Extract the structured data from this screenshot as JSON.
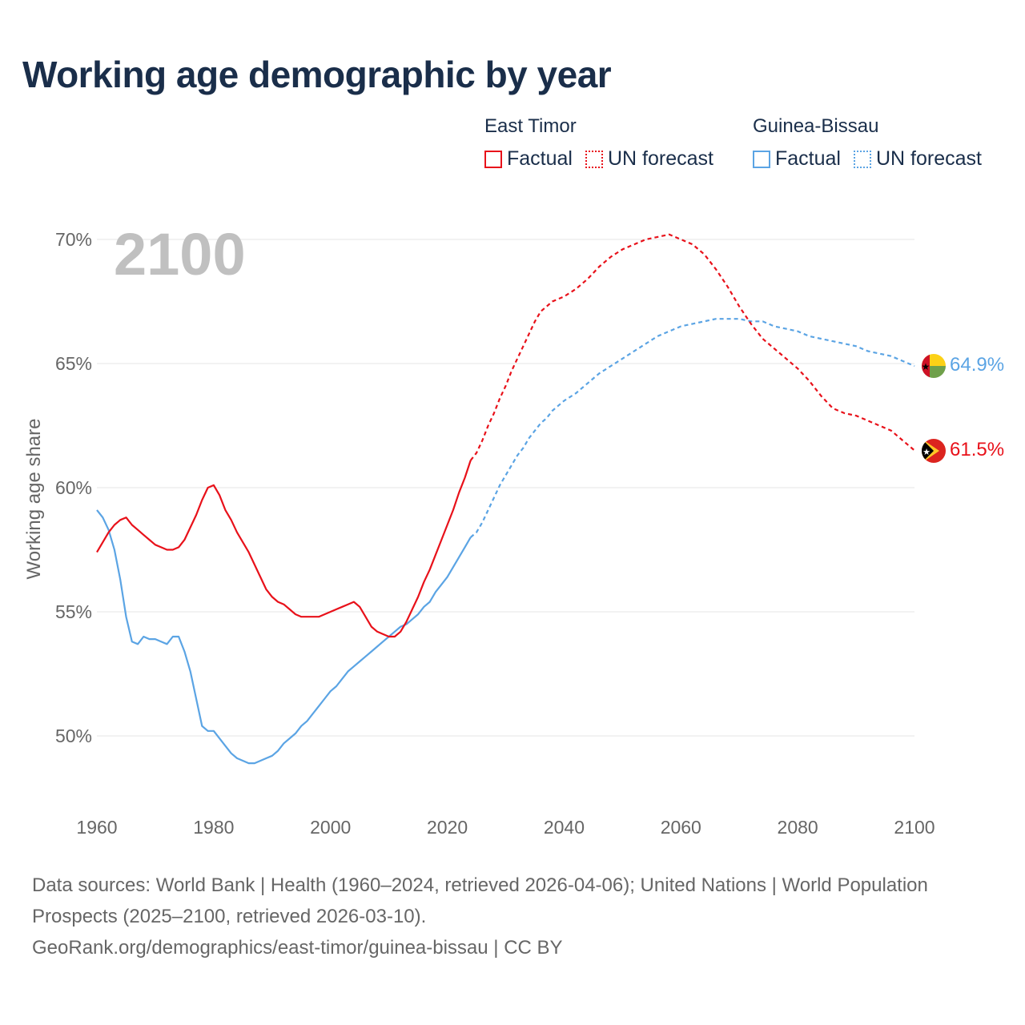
{
  "title": "Working age demographic by year",
  "legend": {
    "groups": [
      {
        "name": "East Timor",
        "color": "#e8111a",
        "factual_label": "Factual",
        "forecast_label": "UN forecast"
      },
      {
        "name": "Guinea-Bissau",
        "color": "#5ba4e4",
        "factual_label": "Factual",
        "forecast_label": "UN forecast"
      }
    ]
  },
  "year_watermark": "2100",
  "end_labels": {
    "east_timor": "61.5%",
    "guinea_bissau": "64.9%"
  },
  "sources": {
    "line1": "Data sources: World Bank | Health (1960–2024, retrieved 2026-04-06); United Nations | World Population Prospects (2025–2100, retrieved 2026-03-10).",
    "line2": "GeoRank.org/demographics/east-timor/guinea-bissau | CC BY"
  },
  "chart_data": {
    "type": "line",
    "title": "Working age demographic by year",
    "xlabel": "",
    "ylabel": "Working age share",
    "xlim": [
      1960,
      2100
    ],
    "ylim": [
      47.5,
      71.5
    ],
    "x_ticks": [
      1960,
      1980,
      2000,
      2020,
      2040,
      2060,
      2080,
      2100
    ],
    "x_tick_labels": [
      "1960",
      "1980",
      "2000",
      "2020",
      "2040",
      "2060",
      "2080",
      "2100"
    ],
    "y_ticks": [
      50,
      55,
      60,
      65,
      70
    ],
    "y_tick_labels": [
      "50%",
      "55%",
      "60%",
      "65%",
      "70%"
    ],
    "grid": true,
    "series": [
      {
        "name": "East Timor",
        "color": "#e8111a",
        "factual": [
          [
            1960,
            57.4
          ],
          [
            1961,
            57.8
          ],
          [
            1962,
            58.2
          ],
          [
            1963,
            58.5
          ],
          [
            1964,
            58.7
          ],
          [
            1965,
            58.8
          ],
          [
            1966,
            58.5
          ],
          [
            1967,
            58.3
          ],
          [
            1968,
            58.1
          ],
          [
            1969,
            57.9
          ],
          [
            1970,
            57.7
          ],
          [
            1971,
            57.6
          ],
          [
            1972,
            57.5
          ],
          [
            1973,
            57.5
          ],
          [
            1974,
            57.6
          ],
          [
            1975,
            57.9
          ],
          [
            1976,
            58.4
          ],
          [
            1977,
            58.9
          ],
          [
            1978,
            59.5
          ],
          [
            1979,
            60.0
          ],
          [
            1980,
            60.1
          ],
          [
            1981,
            59.7
          ],
          [
            1982,
            59.1
          ],
          [
            1983,
            58.7
          ],
          [
            1984,
            58.2
          ],
          [
            1985,
            57.8
          ],
          [
            1986,
            57.4
          ],
          [
            1987,
            56.9
          ],
          [
            1988,
            56.4
          ],
          [
            1989,
            55.9
          ],
          [
            1990,
            55.6
          ],
          [
            1991,
            55.4
          ],
          [
            1992,
            55.3
          ],
          [
            1993,
            55.1
          ],
          [
            1994,
            54.9
          ],
          [
            1995,
            54.8
          ],
          [
            1996,
            54.8
          ],
          [
            1997,
            54.8
          ],
          [
            1998,
            54.8
          ],
          [
            1999,
            54.9
          ],
          [
            2000,
            55.0
          ],
          [
            2001,
            55.1
          ],
          [
            2002,
            55.2
          ],
          [
            2003,
            55.3
          ],
          [
            2004,
            55.4
          ],
          [
            2005,
            55.2
          ],
          [
            2006,
            54.8
          ],
          [
            2007,
            54.4
          ],
          [
            2008,
            54.2
          ],
          [
            2009,
            54.1
          ],
          [
            2010,
            54.0
          ],
          [
            2011,
            54.0
          ],
          [
            2012,
            54.2
          ],
          [
            2013,
            54.6
          ],
          [
            2014,
            55.1
          ],
          [
            2015,
            55.6
          ],
          [
            2016,
            56.2
          ],
          [
            2017,
            56.7
          ],
          [
            2018,
            57.3
          ],
          [
            2019,
            57.9
          ],
          [
            2020,
            58.5
          ],
          [
            2021,
            59.1
          ],
          [
            2022,
            59.8
          ],
          [
            2023,
            60.4
          ],
          [
            2024,
            61.1
          ]
        ],
        "forecast": [
          [
            2024,
            61.1
          ],
          [
            2025,
            61.4
          ],
          [
            2026,
            61.9
          ],
          [
            2027,
            62.5
          ],
          [
            2028,
            63.0
          ],
          [
            2029,
            63.6
          ],
          [
            2030,
            64.1
          ],
          [
            2031,
            64.7
          ],
          [
            2032,
            65.2
          ],
          [
            2033,
            65.7
          ],
          [
            2034,
            66.2
          ],
          [
            2035,
            66.7
          ],
          [
            2036,
            67.1
          ],
          [
            2037,
            67.3
          ],
          [
            2038,
            67.5
          ],
          [
            2039,
            67.6
          ],
          [
            2040,
            67.7
          ],
          [
            2042,
            68.0
          ],
          [
            2044,
            68.4
          ],
          [
            2046,
            68.9
          ],
          [
            2048,
            69.3
          ],
          [
            2050,
            69.6
          ],
          [
            2052,
            69.8
          ],
          [
            2054,
            70.0
          ],
          [
            2056,
            70.1
          ],
          [
            2058,
            70.2
          ],
          [
            2060,
            70.0
          ],
          [
            2062,
            69.8
          ],
          [
            2064,
            69.4
          ],
          [
            2066,
            68.8
          ],
          [
            2068,
            68.1
          ],
          [
            2070,
            67.3
          ],
          [
            2072,
            66.6
          ],
          [
            2074,
            66.0
          ],
          [
            2076,
            65.6
          ],
          [
            2078,
            65.2
          ],
          [
            2080,
            64.8
          ],
          [
            2082,
            64.3
          ],
          [
            2084,
            63.7
          ],
          [
            2086,
            63.2
          ],
          [
            2088,
            63.0
          ],
          [
            2090,
            62.9
          ],
          [
            2092,
            62.7
          ],
          [
            2094,
            62.5
          ],
          [
            2096,
            62.3
          ],
          [
            2098,
            61.9
          ],
          [
            2100,
            61.5
          ]
        ]
      },
      {
        "name": "Guinea-Bissau",
        "color": "#5ba4e4",
        "factual": [
          [
            1960,
            59.1
          ],
          [
            1961,
            58.8
          ],
          [
            1962,
            58.3
          ],
          [
            1963,
            57.5
          ],
          [
            1964,
            56.3
          ],
          [
            1965,
            54.8
          ],
          [
            1966,
            53.8
          ],
          [
            1967,
            53.7
          ],
          [
            1968,
            54.0
          ],
          [
            1969,
            53.9
          ],
          [
            1970,
            53.9
          ],
          [
            1971,
            53.8
          ],
          [
            1972,
            53.7
          ],
          [
            1973,
            54.0
          ],
          [
            1974,
            54.0
          ],
          [
            1975,
            53.4
          ],
          [
            1976,
            52.6
          ],
          [
            1977,
            51.5
          ],
          [
            1978,
            50.4
          ],
          [
            1979,
            50.2
          ],
          [
            1980,
            50.2
          ],
          [
            1981,
            49.9
          ],
          [
            1982,
            49.6
          ],
          [
            1983,
            49.3
          ],
          [
            1984,
            49.1
          ],
          [
            1985,
            49.0
          ],
          [
            1986,
            48.9
          ],
          [
            1987,
            48.9
          ],
          [
            1988,
            49.0
          ],
          [
            1989,
            49.1
          ],
          [
            1990,
            49.2
          ],
          [
            1991,
            49.4
          ],
          [
            1992,
            49.7
          ],
          [
            1993,
            49.9
          ],
          [
            1994,
            50.1
          ],
          [
            1995,
            50.4
          ],
          [
            1996,
            50.6
          ],
          [
            1997,
            50.9
          ],
          [
            1998,
            51.2
          ],
          [
            1999,
            51.5
          ],
          [
            2000,
            51.8
          ],
          [
            2001,
            52.0
          ],
          [
            2002,
            52.3
          ],
          [
            2003,
            52.6
          ],
          [
            2004,
            52.8
          ],
          [
            2005,
            53.0
          ],
          [
            2006,
            53.2
          ],
          [
            2007,
            53.4
          ],
          [
            2008,
            53.6
          ],
          [
            2009,
            53.8
          ],
          [
            2010,
            54.0
          ],
          [
            2011,
            54.2
          ],
          [
            2012,
            54.4
          ],
          [
            2013,
            54.5
          ],
          [
            2014,
            54.7
          ],
          [
            2015,
            54.9
          ],
          [
            2016,
            55.2
          ],
          [
            2017,
            55.4
          ],
          [
            2018,
            55.8
          ],
          [
            2019,
            56.1
          ],
          [
            2020,
            56.4
          ],
          [
            2021,
            56.8
          ],
          [
            2022,
            57.2
          ],
          [
            2023,
            57.6
          ],
          [
            2024,
            58.0
          ]
        ],
        "forecast": [
          [
            2024,
            58.0
          ],
          [
            2025,
            58.2
          ],
          [
            2026,
            58.6
          ],
          [
            2027,
            59.1
          ],
          [
            2028,
            59.6
          ],
          [
            2029,
            60.1
          ],
          [
            2030,
            60.5
          ],
          [
            2031,
            60.9
          ],
          [
            2032,
            61.3
          ],
          [
            2033,
            61.6
          ],
          [
            2034,
            62.0
          ],
          [
            2035,
            62.3
          ],
          [
            2036,
            62.6
          ],
          [
            2037,
            62.8
          ],
          [
            2038,
            63.1
          ],
          [
            2039,
            63.3
          ],
          [
            2040,
            63.5
          ],
          [
            2042,
            63.8
          ],
          [
            2044,
            64.2
          ],
          [
            2046,
            64.6
          ],
          [
            2048,
            64.9
          ],
          [
            2050,
            65.2
          ],
          [
            2052,
            65.5
          ],
          [
            2054,
            65.8
          ],
          [
            2056,
            66.1
          ],
          [
            2058,
            66.3
          ],
          [
            2060,
            66.5
          ],
          [
            2062,
            66.6
          ],
          [
            2064,
            66.7
          ],
          [
            2066,
            66.8
          ],
          [
            2068,
            66.8
          ],
          [
            2070,
            66.8
          ],
          [
            2072,
            66.7
          ],
          [
            2074,
            66.7
          ],
          [
            2076,
            66.5
          ],
          [
            2078,
            66.4
          ],
          [
            2080,
            66.3
          ],
          [
            2082,
            66.1
          ],
          [
            2084,
            66.0
          ],
          [
            2086,
            65.9
          ],
          [
            2088,
            65.8
          ],
          [
            2090,
            65.7
          ],
          [
            2092,
            65.5
          ],
          [
            2094,
            65.4
          ],
          [
            2096,
            65.3
          ],
          [
            2098,
            65.1
          ],
          [
            2100,
            64.9
          ]
        ]
      }
    ]
  }
}
